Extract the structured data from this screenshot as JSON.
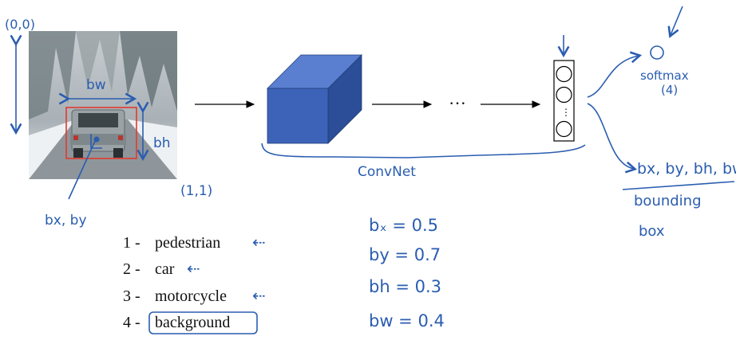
{
  "annotations": {
    "origin": "(0,0)",
    "corner": "(1,1)",
    "bw_label": "bw",
    "bh_label": "bh",
    "bxby_label": "bx, by",
    "convnet_label": "ConvNet",
    "softmax_label": "softmax",
    "softmax_count": "(4)",
    "bbox_outputs": "bx, by, bh, bw",
    "bbox_caption_line1": "bounding",
    "bbox_caption_line2": "box",
    "ellipsis": "···"
  },
  "classes": [
    {
      "num": "1 -",
      "label": "pedestrian",
      "arrow": "⇠"
    },
    {
      "num": "2 -",
      "label": "car",
      "arrow": "⇠"
    },
    {
      "num": "3 -",
      "label": "motorcycle",
      "arrow": "⇠"
    },
    {
      "num": "4 -",
      "label": "background",
      "arrow": ""
    }
  ],
  "values": [
    {
      "name": "bx",
      "text": "bₓ = 0.5"
    },
    {
      "name": "by",
      "text": "by = 0.7"
    },
    {
      "name": "bh",
      "text": "bh = 0.3"
    },
    {
      "name": "bw",
      "text": "bw = 0.4"
    }
  ],
  "colors": {
    "ink": "#2a5db0",
    "cube_front": "#3c63b8",
    "cube_top": "#5a7fd0",
    "cube_side": "#2c4d97",
    "bbox": "#e23a2e"
  }
}
